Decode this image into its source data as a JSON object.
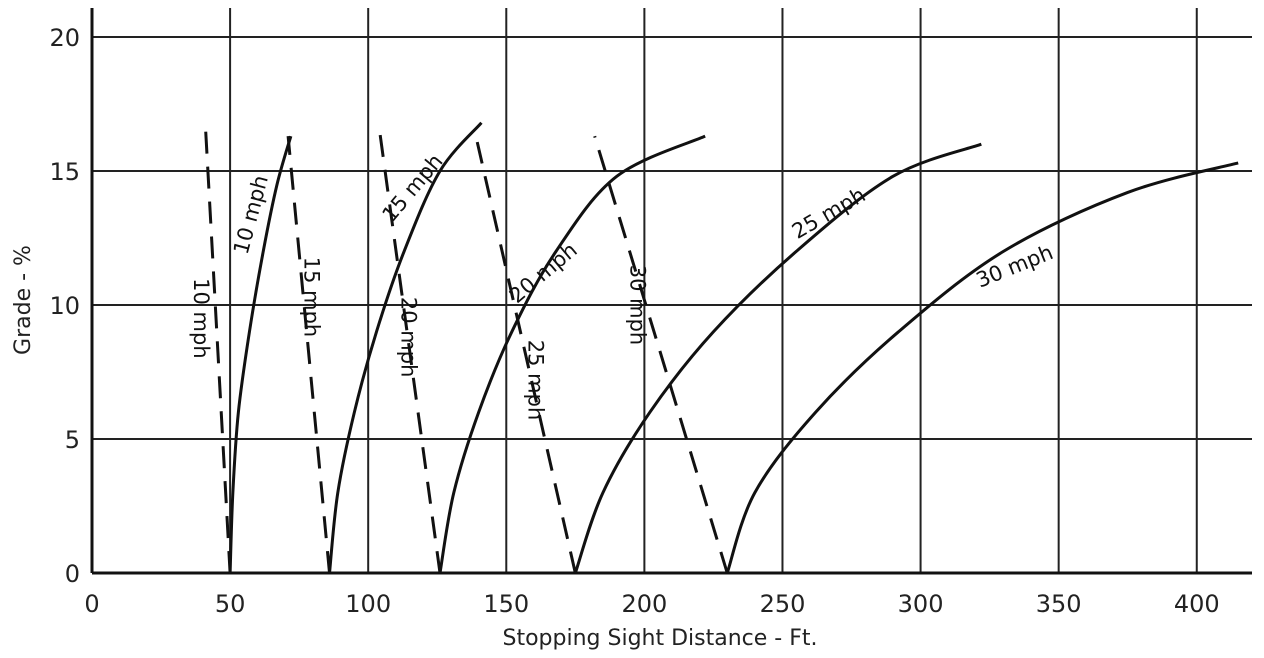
{
  "chart_data": {
    "type": "line",
    "title": "",
    "xlabel": "Stopping Sight Distance - Ft.",
    "ylabel": "Grade - %",
    "xlim": [
      0,
      420
    ],
    "ylim": [
      0,
      20
    ],
    "x_ticks": [
      0,
      50,
      100,
      150,
      200,
      250,
      300,
      350,
      400
    ],
    "y_ticks": [
      0,
      5,
      10,
      15,
      20
    ],
    "grid": {
      "vertical": true,
      "horizontal": true
    },
    "legend": "none",
    "series": [
      {
        "name": "10 mph",
        "style": "solid",
        "x": [
          50,
          51,
          53,
          57,
          62,
          67,
          72
        ],
        "y": [
          0,
          3,
          6,
          9,
          12,
          14.5,
          16.3
        ]
      },
      {
        "name": "15 mph",
        "style": "solid",
        "x": [
          86,
          89,
          95,
          103,
          113,
          126,
          141
        ],
        "y": [
          0,
          3,
          6,
          9,
          12,
          15,
          16.8
        ]
      },
      {
        "name": "20 mph",
        "style": "solid",
        "x": [
          126,
          131,
          140,
          152,
          168,
          190,
          222
        ],
        "y": [
          0,
          3,
          6,
          9,
          12,
          14.8,
          16.3
        ]
      },
      {
        "name": "25 mph",
        "style": "solid",
        "x": [
          175,
          185,
          202,
          225,
          255,
          290,
          322
        ],
        "y": [
          0,
          3,
          6,
          9,
          12,
          14.8,
          16
        ]
      },
      {
        "name": "30 mph",
        "style": "solid",
        "x": [
          230,
          240,
          262,
          292,
          330,
          375,
          415
        ],
        "y": [
          0,
          3,
          6,
          9,
          12,
          14.2,
          15.3
        ]
      },
      {
        "name": "10 mph",
        "style": "dashed",
        "x": [
          50,
          41
        ],
        "y": [
          0,
          16.8
        ]
      },
      {
        "name": "15 mph",
        "style": "dashed",
        "x": [
          86,
          71
        ],
        "y": [
          0,
          16.3
        ]
      },
      {
        "name": "20 mph",
        "style": "dashed",
        "x": [
          126,
          104
        ],
        "y": [
          0,
          16.6
        ]
      },
      {
        "name": "25 mph",
        "style": "dashed",
        "x": [
          175,
          139
        ],
        "y": [
          0,
          16.3
        ]
      },
      {
        "name": "30 mph",
        "style": "dashed",
        "x": [
          230,
          182
        ],
        "y": [
          0,
          16.3
        ]
      }
    ],
    "annotations": [
      "10 mph",
      "15 mph",
      "20 mph",
      "25 mph",
      "30 mph",
      "10 mph",
      "15 mph",
      "20 mph",
      "25 mph",
      "30 mph"
    ]
  }
}
